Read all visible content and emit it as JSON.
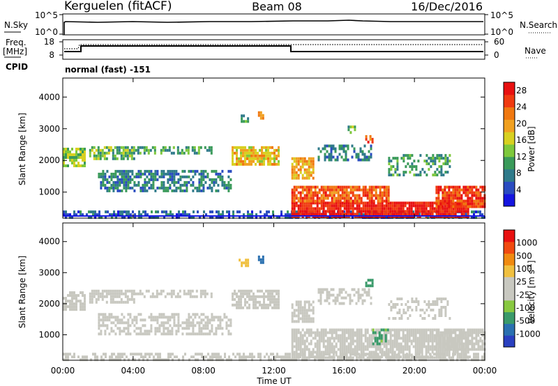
{
  "header": {
    "station": "Kerguelen (fitACF)",
    "beam": "Beam 08",
    "date": "16/Dec/2016"
  },
  "noise_panel": {
    "left_label": "N.Sky",
    "left_ticks": [
      "10^5",
      "10^0"
    ],
    "right_label": "N.Search",
    "right_ticks": [
      "10^5",
      "10^0"
    ]
  },
  "freq_panel": {
    "left_label_1": "Freq.",
    "left_label_2": "[MHz]",
    "left_ticks": [
      "18",
      "8"
    ],
    "right_label": "Nave",
    "right_ticks": [
      "60",
      "0"
    ],
    "cpid_label": "CPID",
    "mode_text": "normal (fast) -151"
  },
  "colors": {
    "power_scale": [
      "#1515e0",
      "#2a4cc0",
      "#2f7a8a",
      "#3a9a5a",
      "#7ec83c",
      "#d8d020",
      "#f0a020",
      "#f07810",
      "#f03a10",
      "#e81010"
    ],
    "velocity_scale": [
      "#e81010",
      "#f04a10",
      "#f08a10",
      "#f0c040",
      "#c8c8c0",
      "#c8c8c0",
      "#88c840",
      "#3a9a6a",
      "#2a70b0",
      "#2a40c0"
    ],
    "ground_scatter": "#c8c8c0"
  },
  "chart_data": [
    {
      "type": "heatmap",
      "name": "power",
      "ylabel": "Slant Range [km]",
      "yticks": [
        1000,
        2000,
        3000,
        4000
      ],
      "ylim": [
        180,
        4600
      ],
      "xlim": [
        0,
        24
      ],
      "colorbar": {
        "label": "Power [dB]",
        "ticks": [
          "4",
          "8",
          "12",
          "16",
          "20",
          "24",
          "28"
        ],
        "range": [
          0,
          30
        ]
      },
      "regions": [
        {
          "t": [
            0.0,
            24.0
          ],
          "r": [
            200,
            420
          ],
          "value": 6,
          "density": 0.55
        },
        {
          "t": [
            13.0,
            23.0
          ],
          "r": [
            230,
            700
          ],
          "value": 28,
          "density": 0.9
        },
        {
          "t": [
            13.0,
            18.5
          ],
          "r": [
            700,
            1200
          ],
          "value": 24,
          "density": 0.85
        },
        {
          "t": [
            13.0,
            14.3
          ],
          "r": [
            1400,
            2100
          ],
          "value": 20,
          "density": 0.85
        },
        {
          "t": [
            21.2,
            24.0
          ],
          "r": [
            500,
            1200
          ],
          "value": 26,
          "density": 0.85
        },
        {
          "t": [
            2.0,
            9.5
          ],
          "r": [
            1000,
            1700
          ],
          "value": 8,
          "density": 0.6
        },
        {
          "t": [
            0.0,
            1.2
          ],
          "r": [
            1800,
            2400
          ],
          "value": 14,
          "density": 0.75
        },
        {
          "t": [
            1.5,
            4.0
          ],
          "r": [
            2050,
            2450
          ],
          "value": 12,
          "density": 0.7
        },
        {
          "t": [
            4.0,
            8.5
          ],
          "r": [
            2200,
            2450
          ],
          "value": 10,
          "density": 0.55
        },
        {
          "t": [
            9.6,
            12.3
          ],
          "r": [
            1900,
            2450
          ],
          "value": 18,
          "density": 0.8
        },
        {
          "t": [
            14.5,
            17.5
          ],
          "r": [
            2000,
            2500
          ],
          "value": 8,
          "density": 0.5
        },
        {
          "t": [
            18.5,
            22.0
          ],
          "r": [
            1500,
            2200
          ],
          "value": 10,
          "density": 0.45
        },
        {
          "t": [
            10.0,
            10.5
          ],
          "r": [
            3200,
            3450
          ],
          "value": 10,
          "density": 0.6
        },
        {
          "t": [
            11.1,
            11.4
          ],
          "r": [
            3350,
            3550
          ],
          "value": 22,
          "density": 0.7
        },
        {
          "t": [
            16.2,
            16.6
          ],
          "r": [
            2900,
            3100
          ],
          "value": 12,
          "density": 0.5
        },
        {
          "t": [
            17.2,
            17.6
          ],
          "r": [
            2550,
            2800
          ],
          "value": 24,
          "density": 0.7
        }
      ]
    },
    {
      "type": "heatmap",
      "name": "velocity",
      "xlabel": "Time UT",
      "ylabel": "Slant Range [km]",
      "xticks": [
        "00:00",
        "04:00",
        "08:00",
        "12:00",
        "16:00",
        "20:00",
        "00:00"
      ],
      "yticks": [
        1000,
        2000,
        3000,
        4000
      ],
      "ylim": [
        180,
        4600
      ],
      "xlim": [
        0,
        24
      ],
      "colorbar": {
        "label": "Velocity [m s^-1]",
        "ticks": [
          "1000",
          "500",
          "100",
          "25",
          "-25",
          "-100",
          "-500",
          "-1000"
        ],
        "range": [
          -1200,
          1200
        ]
      },
      "regions": [
        {
          "t": [
            0.0,
            24.0
          ],
          "r": [
            200,
            420
          ],
          "value": -60,
          "density": 0.55
        },
        {
          "t": [
            13.0,
            23.0
          ],
          "r": [
            230,
            1200
          ],
          "value": 0,
          "density": 0.8
        },
        {
          "t": [
            13.0,
            14.3
          ],
          "r": [
            1400,
            2100
          ],
          "value": 0,
          "density": 0.8
        },
        {
          "t": [
            21.2,
            24.0
          ],
          "r": [
            500,
            1200
          ],
          "value": 0,
          "density": 0.8
        },
        {
          "t": [
            2.0,
            9.5
          ],
          "r": [
            1000,
            1700
          ],
          "value": 0,
          "density": 0.55
        },
        {
          "t": [
            0.0,
            1.2
          ],
          "r": [
            1800,
            2400
          ],
          "value": 0,
          "density": 0.7
        },
        {
          "t": [
            1.5,
            4.0
          ],
          "r": [
            2050,
            2450
          ],
          "value": 0,
          "density": 0.65
        },
        {
          "t": [
            4.0,
            8.5
          ],
          "r": [
            2200,
            2450
          ],
          "value": 0,
          "density": 0.5
        },
        {
          "t": [
            9.6,
            12.3
          ],
          "r": [
            1900,
            2450
          ],
          "value": 0,
          "density": 0.75
        },
        {
          "t": [
            14.5,
            17.5
          ],
          "r": [
            2000,
            2500
          ],
          "value": 0,
          "density": 0.45
        },
        {
          "t": [
            18.5,
            22.0
          ],
          "r": [
            1500,
            2200
          ],
          "value": 0,
          "density": 0.4
        },
        {
          "t": [
            17.6,
            18.5
          ],
          "r": [
            700,
            1200
          ],
          "value": -500,
          "density": 0.6
        },
        {
          "t": [
            10.0,
            10.5
          ],
          "r": [
            3200,
            3450
          ],
          "value": 300,
          "density": 0.6
        },
        {
          "t": [
            11.1,
            11.4
          ],
          "r": [
            3350,
            3550
          ],
          "value": -800,
          "density": 0.7
        },
        {
          "t": [
            17.2,
            17.6
          ],
          "r": [
            2550,
            2800
          ],
          "value": -500,
          "density": 0.7
        }
      ]
    }
  ]
}
